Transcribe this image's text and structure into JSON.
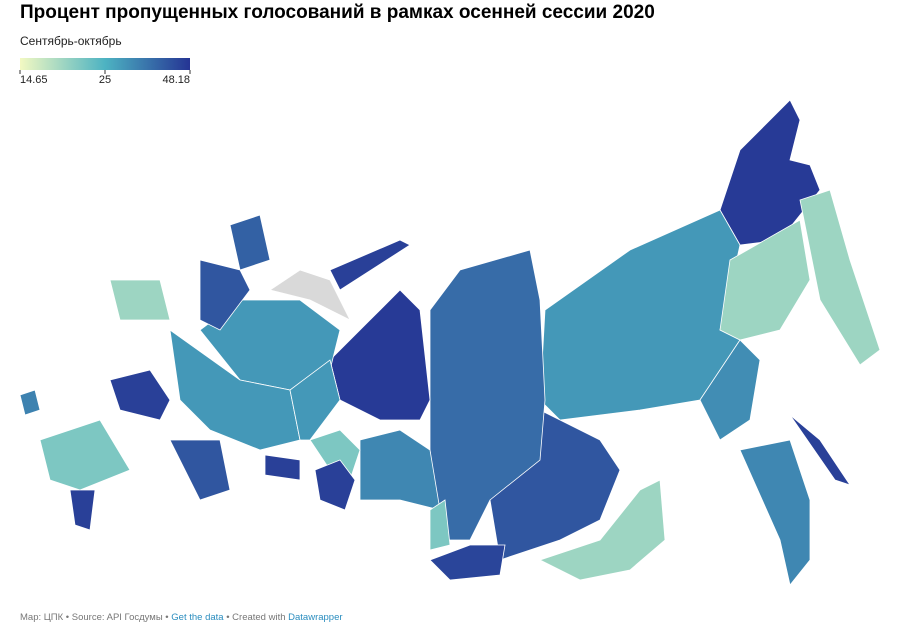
{
  "chart_data": {
    "type": "choropleth",
    "title": "Процент пропущенных голосований в рамках осенней сессии 2020",
    "subtitle": "Сентябрь-октябрь",
    "legend": {
      "ticks": [
        14.65,
        25,
        48.18
      ],
      "colors": [
        "#f3f9c2",
        "#4db3c2",
        "#253494"
      ]
    },
    "values": [
      47,
      20,
      30,
      20,
      32,
      33,
      46,
      20,
      42,
      38,
      47,
      33,
      45,
      22,
      22,
      46,
      30,
      40,
      42,
      46,
      42,
      20,
      30,
      46,
      null,
      46,
      30,
      22,
      46,
      34
    ],
    "missing_color": "#d9d9d9",
    "footer": {
      "source": "Map: ЦПК • Source: API Госдумы •",
      "data_link": "Get the data",
      "sep": "• Created with",
      "tool_link": "Datawrapper"
    }
  }
}
